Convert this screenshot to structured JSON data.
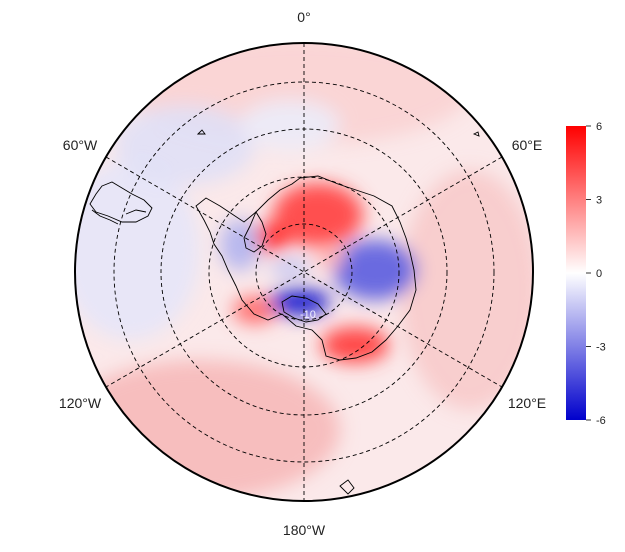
{
  "map": {
    "projection": "south-polar-stereographic",
    "longitude_labels": {
      "top": "0°",
      "upper_left": "60°W",
      "upper_right": "60°E",
      "lower_left": "120°W",
      "lower_right": "120°E",
      "bottom": "180°W"
    },
    "graticule": "dashed",
    "polygon_label": "-10"
  },
  "colorbar": {
    "colors": {
      "max": "#ff0000",
      "mid": "#ffffff",
      "min": "#0000cc"
    },
    "ticks": [
      "6",
      "3",
      "0",
      "-3",
      "-6"
    ],
    "range": [
      -6,
      6
    ]
  }
}
